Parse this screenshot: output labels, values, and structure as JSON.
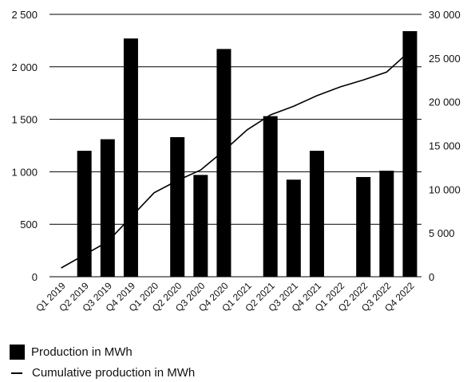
{
  "chart_data": {
    "type": "bar",
    "categories": [
      "Q1 2019",
      "Q2 2019",
      "Q3 2019",
      "Q4 2019",
      "Q1 2020",
      "Q2 2020",
      "Q3 2020",
      "Q4 2020",
      "Q1 2021",
      "Q2 2021",
      "Q3 2021",
      "Q4 2021",
      "Q1 2022",
      "Q2 2022",
      "Q3 2022",
      "Q4 2022"
    ],
    "series": [
      {
        "name": "Production in MWh",
        "type": "bar",
        "axis": "left",
        "values": [
          0,
          1200,
          1310,
          2270,
          0,
          1330,
          970,
          2170,
          0,
          1530,
          925,
          1200,
          0,
          950,
          1010,
          2340
        ]
      },
      {
        "name": "Cumulative production in MWh",
        "type": "line",
        "axis": "right",
        "values": [
          1000,
          2500,
          4000,
          6800,
          9600,
          11000,
          12200,
          14400,
          16800,
          18500,
          19500,
          20700,
          21700,
          22500,
          23400,
          25800
        ]
      }
    ],
    "y_left": {
      "ylim": [
        0,
        2500
      ],
      "ticks": [
        0,
        500,
        1000,
        1500,
        2000,
        2500
      ],
      "tick_labels": [
        "0",
        "500",
        "1 000",
        "1 500",
        "2 000",
        "2 500"
      ]
    },
    "y_right": {
      "ylim": [
        0,
        30000
      ],
      "ticks": [
        0,
        5000,
        10000,
        15000,
        20000,
        25000,
        30000
      ],
      "tick_labels": [
        "0",
        "5 000",
        "10 000",
        "15 000",
        "20 000",
        "25 000",
        "30 000"
      ]
    },
    "grid": "horizontal",
    "legend_position": "bottom-left",
    "colors": {
      "bars": "#000000",
      "line": "#000000",
      "grid": "#000000"
    }
  }
}
